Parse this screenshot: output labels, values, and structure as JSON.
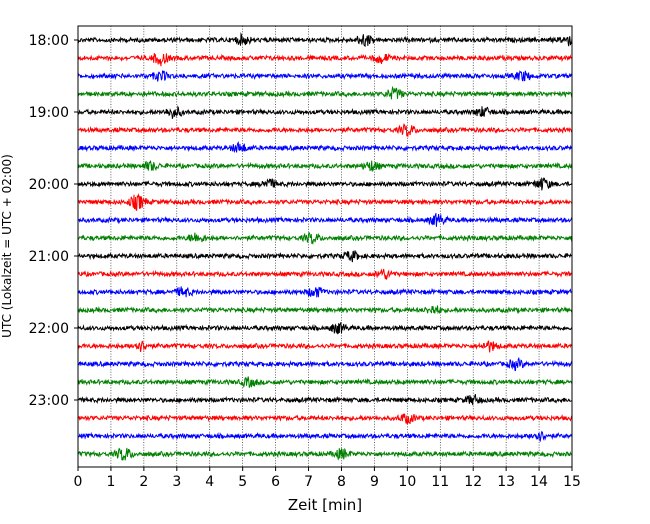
{
  "chart_data": {
    "type": "line",
    "subtype": "helicorder-seismogram",
    "xlabel": "Zeit  [min]",
    "ylabel": "UTC (Lokalzeit = UTC + 02:00)",
    "xlim": [
      0,
      15
    ],
    "x_ticks": [
      "0",
      "1",
      "2",
      "3",
      "4",
      "5",
      "6",
      "7",
      "8",
      "9",
      "10",
      "11",
      "12",
      "13",
      "14",
      "15"
    ],
    "y_tick_labels": [
      "18:00",
      "19:00",
      "20:00",
      "21:00",
      "22:00",
      "23:00"
    ],
    "minutes_per_line": 15,
    "trace_count": 24,
    "trace_color_cycle": [
      "#000000",
      "#ff0000",
      "#0000ff",
      "#008000"
    ],
    "vertical_grid": "dotted",
    "traces": [
      {
        "start": "18:00",
        "color": "#000000",
        "events": [
          {
            "t": 5.0,
            "a": 1.0
          },
          {
            "t": 8.7,
            "a": 1.3
          },
          {
            "t": 14.9,
            "a": 1.0
          }
        ]
      },
      {
        "start": "18:15",
        "color": "#ff0000",
        "events": [
          {
            "t": 2.5,
            "a": 1.4
          },
          {
            "t": 9.2,
            "a": 1.0
          }
        ]
      },
      {
        "start": "18:30",
        "color": "#0000ff",
        "events": [
          {
            "t": 2.5,
            "a": 1.0
          },
          {
            "t": 13.5,
            "a": 1.0
          }
        ]
      },
      {
        "start": "18:45",
        "color": "#008000",
        "events": [
          {
            "t": 9.6,
            "a": 1.2
          }
        ]
      },
      {
        "start": "19:00",
        "color": "#000000",
        "events": [
          {
            "t": 2.9,
            "a": 1.2
          },
          {
            "t": 12.3,
            "a": 1.0
          }
        ]
      },
      {
        "start": "19:15",
        "color": "#ff0000",
        "events": [
          {
            "t": 10.0,
            "a": 1.2
          }
        ]
      },
      {
        "start": "19:30",
        "color": "#0000ff",
        "events": [
          {
            "t": 4.9,
            "a": 1.0
          }
        ]
      },
      {
        "start": "19:45",
        "color": "#008000",
        "events": [
          {
            "t": 2.2,
            "a": 0.9
          },
          {
            "t": 8.9,
            "a": 1.0
          }
        ]
      },
      {
        "start": "20:00",
        "color": "#000000",
        "events": [
          {
            "t": 5.8,
            "a": 1.0
          },
          {
            "t": 14.1,
            "a": 1.2
          }
        ]
      },
      {
        "start": "20:15",
        "color": "#ff0000",
        "events": [
          {
            "t": 1.8,
            "a": 1.6
          }
        ]
      },
      {
        "start": "20:30",
        "color": "#0000ff",
        "events": [
          {
            "t": 10.9,
            "a": 1.2
          }
        ]
      },
      {
        "start": "20:45",
        "color": "#008000",
        "events": [
          {
            "t": 3.6,
            "a": 1.0
          },
          {
            "t": 7.1,
            "a": 1.0
          }
        ]
      },
      {
        "start": "21:00",
        "color": "#000000",
        "events": [
          {
            "t": 8.3,
            "a": 1.0
          }
        ]
      },
      {
        "start": "21:15",
        "color": "#ff0000",
        "events": [
          {
            "t": 9.3,
            "a": 1.0
          }
        ]
      },
      {
        "start": "21:30",
        "color": "#0000ff",
        "events": [
          {
            "t": 3.2,
            "a": 1.0
          },
          {
            "t": 7.2,
            "a": 1.1
          }
        ]
      },
      {
        "start": "21:45",
        "color": "#008000",
        "events": [
          {
            "t": 10.8,
            "a": 0.9
          }
        ]
      },
      {
        "start": "22:00",
        "color": "#000000",
        "events": [
          {
            "t": 7.9,
            "a": 1.1
          }
        ]
      },
      {
        "start": "22:15",
        "color": "#ff0000",
        "events": [
          {
            "t": 1.9,
            "a": 1.0
          },
          {
            "t": 12.5,
            "a": 1.0
          }
        ]
      },
      {
        "start": "22:30",
        "color": "#0000ff",
        "events": [
          {
            "t": 13.3,
            "a": 1.0
          }
        ]
      },
      {
        "start": "22:45",
        "color": "#008000",
        "events": [
          {
            "t": 5.2,
            "a": 0.9
          }
        ]
      },
      {
        "start": "23:00",
        "color": "#000000",
        "events": [
          {
            "t": 12.0,
            "a": 1.0
          }
        ]
      },
      {
        "start": "23:15",
        "color": "#ff0000",
        "events": [
          {
            "t": 10.0,
            "a": 1.0
          }
        ]
      },
      {
        "start": "23:30",
        "color": "#0000ff",
        "events": [
          {
            "t": 14.0,
            "a": 1.0
          }
        ]
      },
      {
        "start": "23:45",
        "color": "#008000",
        "events": [
          {
            "t": 1.4,
            "a": 1.4
          },
          {
            "t": 8.0,
            "a": 1.0
          }
        ]
      }
    ]
  }
}
